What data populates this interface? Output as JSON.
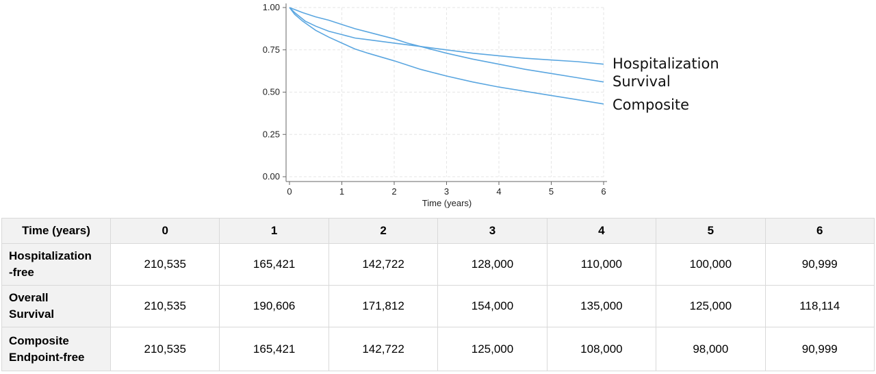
{
  "chart_data": {
    "type": "line",
    "xlabel": "Time (years)",
    "ylabel": "",
    "xlim": [
      0,
      6
    ],
    "ylim": [
      0,
      1
    ],
    "x_ticks": [
      "0",
      "1",
      "2",
      "3",
      "4",
      "5",
      "6"
    ],
    "y_ticks": [
      "0.00",
      "0.25",
      "0.50",
      "0.75",
      "1.00"
    ],
    "grid": true,
    "line_color": "#5aa6e0",
    "series": [
      {
        "name": "Hospitalization",
        "x": [
          0,
          0.1,
          0.3,
          0.5,
          0.75,
          1.0,
          1.25,
          1.5,
          2.0,
          2.5,
          3.0,
          3.5,
          4.0,
          4.5,
          5.0,
          5.5,
          6.0
        ],
        "y": [
          1.0,
          0.97,
          0.92,
          0.89,
          0.86,
          0.84,
          0.82,
          0.81,
          0.79,
          0.77,
          0.75,
          0.73,
          0.715,
          0.7,
          0.69,
          0.68,
          0.665
        ]
      },
      {
        "name": "Survival",
        "x": [
          0,
          0.25,
          0.5,
          0.75,
          1.0,
          1.25,
          1.5,
          1.75,
          2.0,
          2.25,
          2.5,
          2.75,
          3.0,
          3.5,
          4.0,
          4.5,
          5.0,
          5.5,
          6.0
        ],
        "y": [
          1.0,
          0.97,
          0.945,
          0.925,
          0.9,
          0.875,
          0.855,
          0.835,
          0.815,
          0.79,
          0.77,
          0.75,
          0.73,
          0.695,
          0.665,
          0.635,
          0.61,
          0.585,
          0.56
        ]
      },
      {
        "name": "Composite",
        "x": [
          0,
          0.1,
          0.25,
          0.5,
          0.75,
          1.0,
          1.25,
          1.5,
          2.0,
          2.5,
          3.0,
          3.5,
          4.0,
          4.5,
          5.0,
          5.5,
          6.0
        ],
        "y": [
          1.0,
          0.96,
          0.92,
          0.865,
          0.825,
          0.79,
          0.755,
          0.73,
          0.685,
          0.635,
          0.595,
          0.56,
          0.53,
          0.505,
          0.48,
          0.455,
          0.43
        ]
      }
    ]
  },
  "table": {
    "header_label": "Time (years)",
    "columns": [
      "0",
      "1",
      "2",
      "3",
      "4",
      "5",
      "6"
    ],
    "rows": [
      {
        "label": "Hospitalization\n-free",
        "values": [
          "210,535",
          "165,421",
          "142,722",
          "128,000",
          "110,000",
          "100,000",
          "90,999"
        ]
      },
      {
        "label": "Overall\nSurvival",
        "values": [
          "210,535",
          "190,606",
          "171,812",
          "154,000",
          "135,000",
          "125,000",
          "118,114"
        ]
      },
      {
        "label": "Composite\nEndpoint-free",
        "values": [
          "210,535",
          "165,421",
          "142,722",
          "125,000",
          "108,000",
          "98,000",
          "90,999"
        ]
      }
    ]
  }
}
